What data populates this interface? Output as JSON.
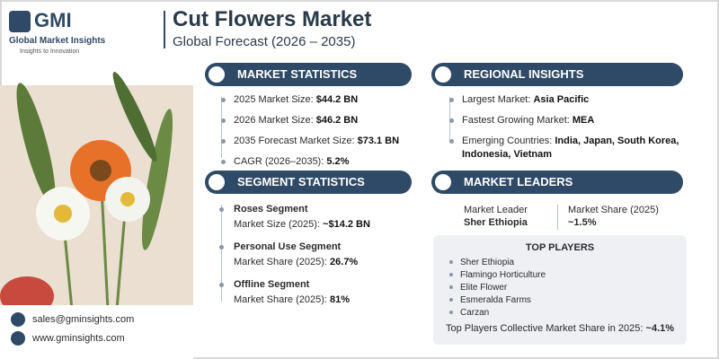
{
  "logo": {
    "name": "GMI",
    "tagline": "Global Market Insights",
    "slogan": "Insights to Innovation"
  },
  "header": {
    "title": "Cut Flowers Market",
    "subtitle": "Global Forecast (2026 – 2035)"
  },
  "market_statistics": {
    "title": "MARKET STATISTICS",
    "items": [
      {
        "label": "2025 Market Size:",
        "value": "$44.2 BN"
      },
      {
        "label": "2026 Market Size:",
        "value": "$46.2 BN"
      },
      {
        "label": "2035 Forecast Market Size:",
        "value": "$73.1 BN"
      },
      {
        "label": "CAGR (2026–2035):",
        "value": "5.2%"
      }
    ]
  },
  "regional_insights": {
    "title": "REGIONAL INSIGHTS",
    "items": [
      {
        "label": "Largest Market:",
        "value": "Asia Pacific"
      },
      {
        "label": "Fastest Growing Market:",
        "value": "MEA"
      },
      {
        "label": "Emerging Countries:",
        "value": "India, Japan, South Korea, Indonesia, Vietnam"
      }
    ]
  },
  "segment_statistics": {
    "title": "SEGMENT STATISTICS",
    "items": [
      {
        "name": "Roses Segment",
        "label": "Market Size (2025):",
        "value": "~$14.2 BN"
      },
      {
        "name": "Personal Use Segment",
        "label": "Market Share (2025):",
        "value": "26.7%"
      },
      {
        "name": "Offline Segment",
        "label": "Market Share (2025):",
        "value": "81%"
      }
    ]
  },
  "market_leaders": {
    "title": "MARKET LEADERS",
    "leader": {
      "label": "Market Leader",
      "value": "Sher Ethiopia"
    },
    "share": {
      "label": "Market Share (2025)",
      "value": "~1.5%"
    }
  },
  "top_players": {
    "title": "TOP PLAYERS",
    "players": [
      "Sher Ethiopia",
      "Flamingo Horticulture",
      "Elite Flower",
      "Esmeralda Farms",
      "Carzan"
    ],
    "collective": {
      "label": "Top Players Collective Market Share in 2025:",
      "value": "~4.1%"
    }
  },
  "contact": {
    "email": "sales@gminsights.com",
    "website": "www.gminsights.com"
  }
}
